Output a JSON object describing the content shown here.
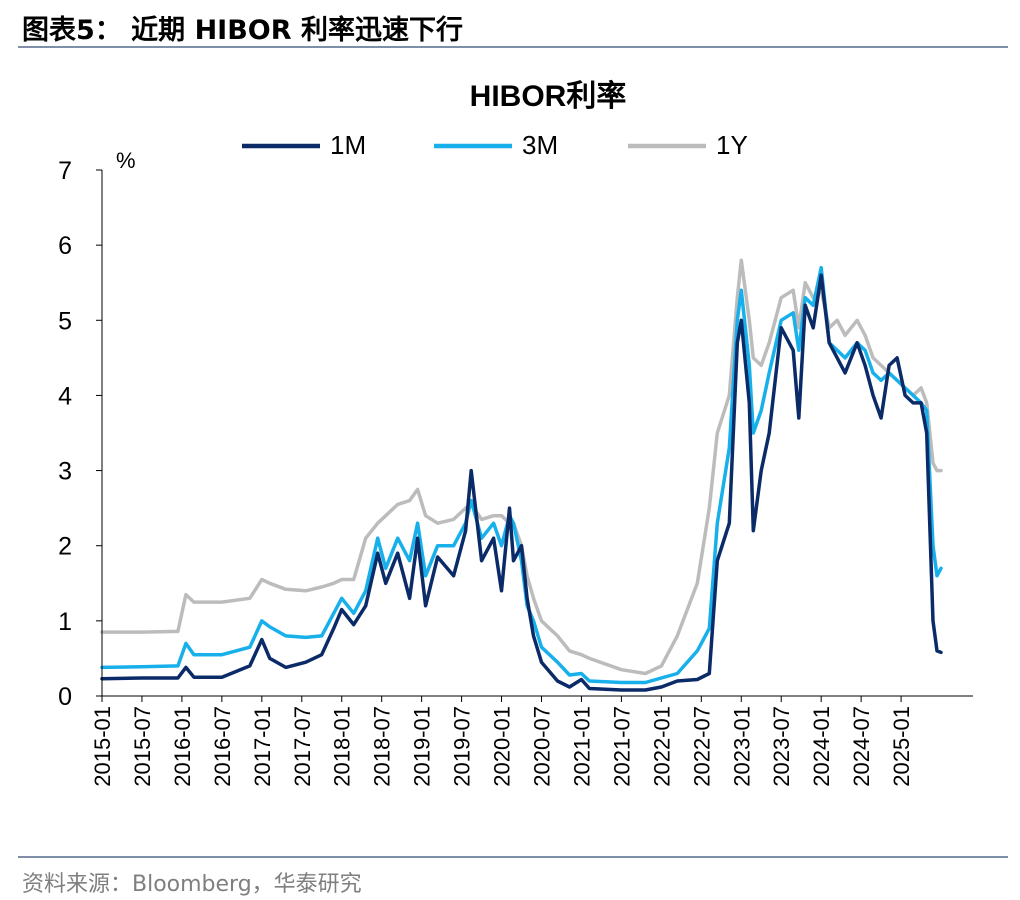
{
  "figure": {
    "title": "图表5：  近期 HIBOR 利率迅速下行",
    "source": "资料来源：Bloomberg，华泰研究"
  },
  "colors": {
    "1M": "#0b2a68",
    "3M": "#18b0eb",
    "1Y": "#bcbcbc",
    "axis": "#000000",
    "rule": "#7f8fa8"
  },
  "chart_data": {
    "type": "line",
    "title": "HIBOR利率",
    "ylabel": "%",
    "xlabel": "",
    "ylim": [
      0,
      7
    ],
    "yticks": [
      0,
      1,
      2,
      3,
      4,
      5,
      6,
      7
    ],
    "xlim": [
      2015.0,
      2025.9
    ],
    "xticks": [
      {
        "label": "2015-01",
        "t": 2015.0
      },
      {
        "label": "2015-07",
        "t": 2015.5
      },
      {
        "label": "2016-01",
        "t": 2016.0
      },
      {
        "label": "2016-07",
        "t": 2016.5
      },
      {
        "label": "2017-01",
        "t": 2017.0
      },
      {
        "label": "2017-07",
        "t": 2017.5
      },
      {
        "label": "2018-01",
        "t": 2018.0
      },
      {
        "label": "2018-07",
        "t": 2018.5
      },
      {
        "label": "2019-01",
        "t": 2019.0
      },
      {
        "label": "2019-07",
        "t": 2019.5
      },
      {
        "label": "2020-01",
        "t": 2020.0
      },
      {
        "label": "2020-07",
        "t": 2020.5
      },
      {
        "label": "2021-01",
        "t": 2021.0
      },
      {
        "label": "2021-07",
        "t": 2021.5
      },
      {
        "label": "2022-01",
        "t": 2022.0
      },
      {
        "label": "2022-07",
        "t": 2022.5
      },
      {
        "label": "2023-01",
        "t": 2023.0
      },
      {
        "label": "2023-07",
        "t": 2023.5
      },
      {
        "label": "2024-01",
        "t": 2024.0
      },
      {
        "label": "2024-07",
        "t": 2024.5
      },
      {
        "label": "2025-01",
        "t": 2025.0
      }
    ],
    "legend_position": "top",
    "series": [
      {
        "name": "1M",
        "key": "1M",
        "points": [
          [
            2015.0,
            0.23
          ],
          [
            2015.5,
            0.24
          ],
          [
            2015.95,
            0.24
          ],
          [
            2016.05,
            0.38
          ],
          [
            2016.15,
            0.25
          ],
          [
            2016.5,
            0.25
          ],
          [
            2016.85,
            0.4
          ],
          [
            2017.0,
            0.75
          ],
          [
            2017.1,
            0.5
          ],
          [
            2017.3,
            0.38
          ],
          [
            2017.55,
            0.45
          ],
          [
            2017.75,
            0.55
          ],
          [
            2017.9,
            0.9
          ],
          [
            2018.0,
            1.15
          ],
          [
            2018.15,
            0.95
          ],
          [
            2018.3,
            1.2
          ],
          [
            2018.45,
            1.9
          ],
          [
            2018.55,
            1.5
          ],
          [
            2018.7,
            1.9
          ],
          [
            2018.85,
            1.3
          ],
          [
            2018.95,
            2.1
          ],
          [
            2019.05,
            1.2
          ],
          [
            2019.2,
            1.85
          ],
          [
            2019.4,
            1.6
          ],
          [
            2019.55,
            2.2
          ],
          [
            2019.62,
            3.0
          ],
          [
            2019.75,
            1.8
          ],
          [
            2019.9,
            2.1
          ],
          [
            2020.0,
            1.4
          ],
          [
            2020.1,
            2.5
          ],
          [
            2020.15,
            1.8
          ],
          [
            2020.25,
            2.0
          ],
          [
            2020.32,
            1.3
          ],
          [
            2020.4,
            0.8
          ],
          [
            2020.5,
            0.45
          ],
          [
            2020.7,
            0.2
          ],
          [
            2020.85,
            0.12
          ],
          [
            2021.0,
            0.22
          ],
          [
            2021.1,
            0.1
          ],
          [
            2021.5,
            0.08
          ],
          [
            2021.8,
            0.08
          ],
          [
            2022.0,
            0.12
          ],
          [
            2022.2,
            0.2
          ],
          [
            2022.45,
            0.22
          ],
          [
            2022.6,
            0.3
          ],
          [
            2022.7,
            1.8
          ],
          [
            2022.85,
            2.3
          ],
          [
            2022.95,
            4.7
          ],
          [
            2023.0,
            5.0
          ],
          [
            2023.1,
            3.9
          ],
          [
            2023.15,
            2.2
          ],
          [
            2023.25,
            3.0
          ],
          [
            2023.35,
            3.5
          ],
          [
            2023.5,
            4.9
          ],
          [
            2023.65,
            4.6
          ],
          [
            2023.72,
            3.7
          ],
          [
            2023.8,
            5.2
          ],
          [
            2023.9,
            4.9
          ],
          [
            2024.0,
            5.6
          ],
          [
            2024.1,
            4.7
          ],
          [
            2024.2,
            4.5
          ],
          [
            2024.3,
            4.3
          ],
          [
            2024.45,
            4.7
          ],
          [
            2024.55,
            4.4
          ],
          [
            2024.65,
            4.0
          ],
          [
            2024.75,
            3.7
          ],
          [
            2024.85,
            4.4
          ],
          [
            2024.95,
            4.5
          ],
          [
            2025.05,
            4.0
          ],
          [
            2025.15,
            3.9
          ],
          [
            2025.25,
            3.9
          ],
          [
            2025.32,
            3.5
          ],
          [
            2025.4,
            1.0
          ],
          [
            2025.45,
            0.6
          ],
          [
            2025.5,
            0.58
          ]
        ]
      },
      {
        "name": "3M",
        "key": "3M",
        "points": [
          [
            2015.0,
            0.38
          ],
          [
            2015.5,
            0.39
          ],
          [
            2015.95,
            0.4
          ],
          [
            2016.05,
            0.7
          ],
          [
            2016.15,
            0.55
          ],
          [
            2016.5,
            0.55
          ],
          [
            2016.85,
            0.65
          ],
          [
            2017.0,
            1.0
          ],
          [
            2017.1,
            0.92
          ],
          [
            2017.3,
            0.8
          ],
          [
            2017.55,
            0.78
          ],
          [
            2017.75,
            0.8
          ],
          [
            2017.9,
            1.1
          ],
          [
            2018.0,
            1.3
          ],
          [
            2018.15,
            1.1
          ],
          [
            2018.3,
            1.4
          ],
          [
            2018.45,
            2.1
          ],
          [
            2018.55,
            1.7
          ],
          [
            2018.7,
            2.1
          ],
          [
            2018.85,
            1.8
          ],
          [
            2018.95,
            2.3
          ],
          [
            2019.05,
            1.6
          ],
          [
            2019.2,
            2.0
          ],
          [
            2019.4,
            2.0
          ],
          [
            2019.55,
            2.3
          ],
          [
            2019.62,
            2.6
          ],
          [
            2019.75,
            2.1
          ],
          [
            2019.9,
            2.3
          ],
          [
            2020.0,
            2.0
          ],
          [
            2020.1,
            2.4
          ],
          [
            2020.15,
            2.3
          ],
          [
            2020.25,
            1.8
          ],
          [
            2020.32,
            1.2
          ],
          [
            2020.4,
            1.0
          ],
          [
            2020.5,
            0.65
          ],
          [
            2020.7,
            0.45
          ],
          [
            2020.85,
            0.28
          ],
          [
            2021.0,
            0.3
          ],
          [
            2021.1,
            0.2
          ],
          [
            2021.5,
            0.18
          ],
          [
            2021.8,
            0.18
          ],
          [
            2022.0,
            0.24
          ],
          [
            2022.2,
            0.3
          ],
          [
            2022.45,
            0.6
          ],
          [
            2022.6,
            0.9
          ],
          [
            2022.7,
            2.3
          ],
          [
            2022.85,
            3.3
          ],
          [
            2022.95,
            5.0
          ],
          [
            2023.0,
            5.4
          ],
          [
            2023.1,
            4.4
          ],
          [
            2023.15,
            3.5
          ],
          [
            2023.25,
            3.8
          ],
          [
            2023.35,
            4.3
          ],
          [
            2023.5,
            5.0
          ],
          [
            2023.65,
            5.1
          ],
          [
            2023.72,
            4.6
          ],
          [
            2023.8,
            5.3
          ],
          [
            2023.9,
            5.2
          ],
          [
            2024.0,
            5.7
          ],
          [
            2024.1,
            4.7
          ],
          [
            2024.2,
            4.6
          ],
          [
            2024.3,
            4.5
          ],
          [
            2024.45,
            4.7
          ],
          [
            2024.55,
            4.6
          ],
          [
            2024.65,
            4.3
          ],
          [
            2024.75,
            4.2
          ],
          [
            2024.85,
            4.3
          ],
          [
            2024.95,
            4.2
          ],
          [
            2025.05,
            4.1
          ],
          [
            2025.15,
            4.0
          ],
          [
            2025.25,
            3.9
          ],
          [
            2025.32,
            3.8
          ],
          [
            2025.4,
            2.0
          ],
          [
            2025.45,
            1.6
          ],
          [
            2025.5,
            1.7
          ]
        ]
      },
      {
        "name": "1Y",
        "key": "1Y",
        "points": [
          [
            2015.0,
            0.85
          ],
          [
            2015.5,
            0.85
          ],
          [
            2015.95,
            0.86
          ],
          [
            2016.05,
            1.35
          ],
          [
            2016.15,
            1.25
          ],
          [
            2016.5,
            1.25
          ],
          [
            2016.85,
            1.3
          ],
          [
            2017.0,
            1.55
          ],
          [
            2017.1,
            1.5
          ],
          [
            2017.3,
            1.42
          ],
          [
            2017.55,
            1.4
          ],
          [
            2017.75,
            1.45
          ],
          [
            2017.9,
            1.5
          ],
          [
            2018.0,
            1.55
          ],
          [
            2018.15,
            1.55
          ],
          [
            2018.3,
            2.1
          ],
          [
            2018.45,
            2.3
          ],
          [
            2018.55,
            2.4
          ],
          [
            2018.7,
            2.55
          ],
          [
            2018.85,
            2.6
          ],
          [
            2018.95,
            2.75
          ],
          [
            2019.05,
            2.4
          ],
          [
            2019.2,
            2.3
          ],
          [
            2019.4,
            2.35
          ],
          [
            2019.55,
            2.5
          ],
          [
            2019.62,
            2.55
          ],
          [
            2019.75,
            2.35
          ],
          [
            2019.9,
            2.4
          ],
          [
            2020.0,
            2.4
          ],
          [
            2020.1,
            2.3
          ],
          [
            2020.15,
            2.3
          ],
          [
            2020.25,
            2.0
          ],
          [
            2020.32,
            1.6
          ],
          [
            2020.4,
            1.3
          ],
          [
            2020.5,
            1.0
          ],
          [
            2020.7,
            0.8
          ],
          [
            2020.85,
            0.6
          ],
          [
            2021.0,
            0.55
          ],
          [
            2021.1,
            0.5
          ],
          [
            2021.5,
            0.35
          ],
          [
            2021.8,
            0.3
          ],
          [
            2022.0,
            0.4
          ],
          [
            2022.2,
            0.8
          ],
          [
            2022.45,
            1.5
          ],
          [
            2022.6,
            2.5
          ],
          [
            2022.7,
            3.5
          ],
          [
            2022.85,
            4.0
          ],
          [
            2022.95,
            5.3
          ],
          [
            2023.0,
            5.8
          ],
          [
            2023.1,
            5.0
          ],
          [
            2023.15,
            4.5
          ],
          [
            2023.25,
            4.4
          ],
          [
            2023.35,
            4.7
          ],
          [
            2023.5,
            5.3
          ],
          [
            2023.65,
            5.4
          ],
          [
            2023.72,
            4.9
          ],
          [
            2023.8,
            5.5
          ],
          [
            2023.9,
            5.3
          ],
          [
            2024.0,
            5.4
          ],
          [
            2024.1,
            4.9
          ],
          [
            2024.2,
            5.0
          ],
          [
            2024.3,
            4.8
          ],
          [
            2024.45,
            5.0
          ],
          [
            2024.55,
            4.8
          ],
          [
            2024.65,
            4.5
          ],
          [
            2024.75,
            4.4
          ],
          [
            2024.85,
            4.3
          ],
          [
            2024.95,
            4.2
          ],
          [
            2025.05,
            4.1
          ],
          [
            2025.15,
            4.0
          ],
          [
            2025.25,
            4.1
          ],
          [
            2025.32,
            3.9
          ],
          [
            2025.4,
            3.1
          ],
          [
            2025.45,
            3.0
          ],
          [
            2025.5,
            3.0
          ]
        ]
      }
    ]
  }
}
